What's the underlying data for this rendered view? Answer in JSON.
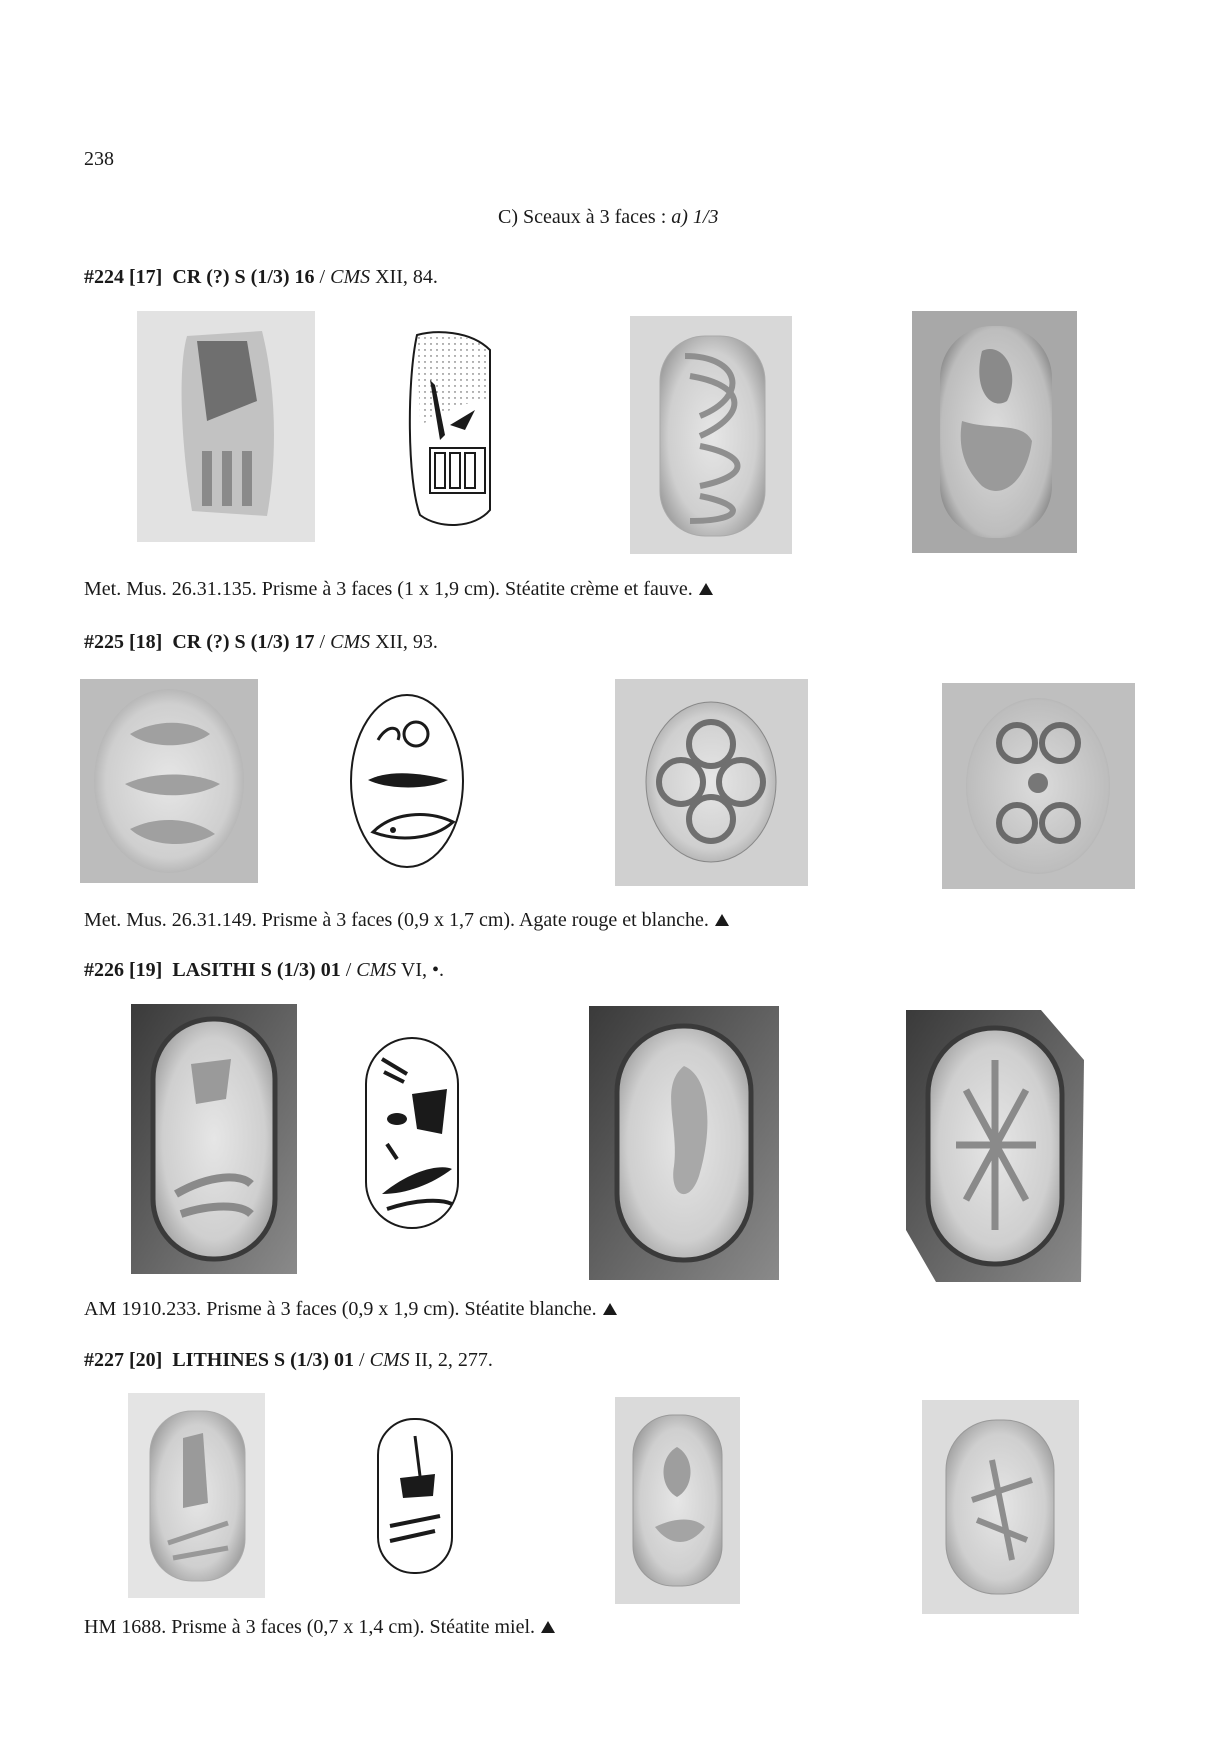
{
  "page_number": "238",
  "section_heading": {
    "prefix": "C) Sceaux à 3 faces : ",
    "suffix": "a) 1/3"
  },
  "entries": [
    {
      "id": "#224 [17]",
      "designation": "CR (?) S (1/3) 16",
      "sep": " / ",
      "cms": "CMS",
      "cms_ref": " XII, 84.",
      "caption": "Met. Mus. 26.31.135. Prisme à 3 faces (1 x 1,9 cm). Stéatite crème et fauve."
    },
    {
      "id": "#225 [18]",
      "designation": "CR (?) S (1/3) 17",
      "sep": " / ",
      "cms": "CMS",
      "cms_ref": " XII, 93.",
      "caption": "Met. Mus. 26.31.149. Prisme à 3 faces (0,9 x 1,7 cm). Agate rouge et blanche."
    },
    {
      "id": "#226 [19]",
      "designation": "LASITHI S (1/3) 01",
      "sep": " / ",
      "cms": "CMS",
      "cms_ref": " VI, •.",
      "caption": "AM 1910.233. Prisme à 3 faces (0,9 x 1,9 cm). Stéatite blanche."
    },
    {
      "id": "#227 [20]",
      "designation": "LITHINES S (1/3) 01",
      "sep": " / ",
      "cms": "CMS",
      "cms_ref": " II, 2, 277.",
      "caption": "HM 1688. Prisme à 3 faces (0,7 x 1,4 cm). Stéatite miel."
    }
  ],
  "icons": {
    "triangle": "triangle-marker-icon"
  },
  "colors": {
    "ink": "#1a1a1a",
    "paper": "#ffffff"
  }
}
